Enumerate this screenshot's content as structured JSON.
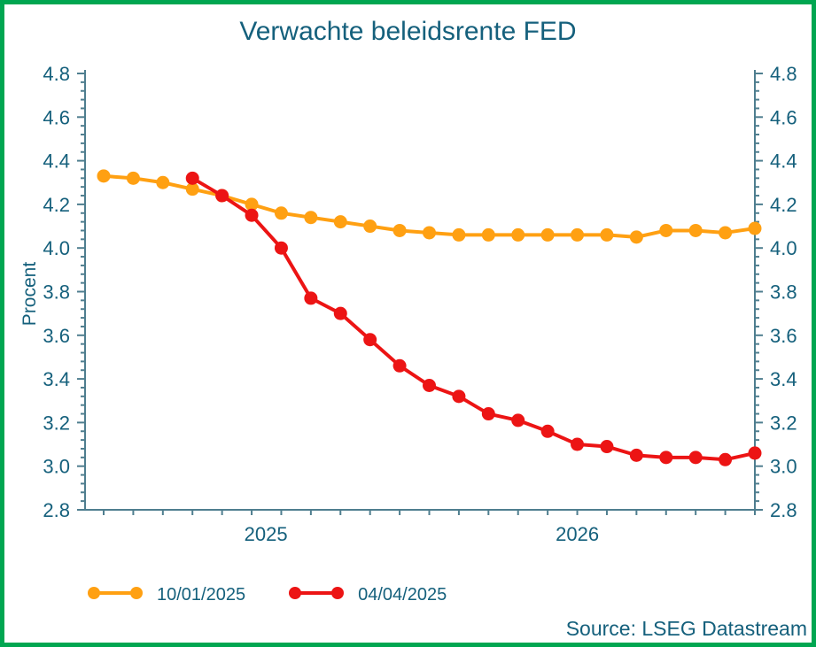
{
  "title": "Verwachte beleidsrente FED",
  "source_credit": "Source: LSEG Datastream",
  "colors": {
    "border_green": "#00A651",
    "text_teal": "#15607C",
    "axis_steel": "#4F7E8F",
    "series_orange": "#FFA012",
    "series_red": "#EC1414",
    "background": "#FFFFFF"
  },
  "legend": {
    "items": [
      {
        "label": "10/01/2025",
        "color": "#FFA012"
      },
      {
        "label": "04/04/2025",
        "color": "#EC1414"
      }
    ]
  },
  "chart_data": {
    "type": "line",
    "title": "Verwachte beleidsrente FED",
    "ylabel": "Procent",
    "ylim": [
      2.8,
      4.8
    ],
    "ytick_step": 0.2,
    "y_minor_divisions": 5,
    "y_axis_sides": "both",
    "grid": false,
    "legend_position": "bottom-left",
    "x_axis": {
      "n_points": 23,
      "tick_unit": "month",
      "year_labels": [
        {
          "label": "2025",
          "frac": 0.27
        },
        {
          "label": "2026",
          "frac": 0.735
        }
      ]
    },
    "series": [
      {
        "name": "10/01/2025",
        "color": "#FFA012",
        "start_index": 0,
        "values": [
          4.33,
          4.32,
          4.3,
          4.27,
          4.24,
          4.2,
          4.16,
          4.14,
          4.12,
          4.1,
          4.08,
          4.07,
          4.06,
          4.06,
          4.06,
          4.06,
          4.06,
          4.06,
          4.05,
          4.08,
          4.08,
          4.07,
          4.09
        ]
      },
      {
        "name": "04/04/2025",
        "color": "#EC1414",
        "start_index": 3,
        "values": [
          4.32,
          4.24,
          4.15,
          4.0,
          3.77,
          3.7,
          3.58,
          3.46,
          3.37,
          3.32,
          3.24,
          3.21,
          3.16,
          3.1,
          3.09,
          3.05,
          3.04,
          3.04,
          3.03,
          3.06
        ]
      }
    ],
    "source": "Source: LSEG Datastream"
  }
}
